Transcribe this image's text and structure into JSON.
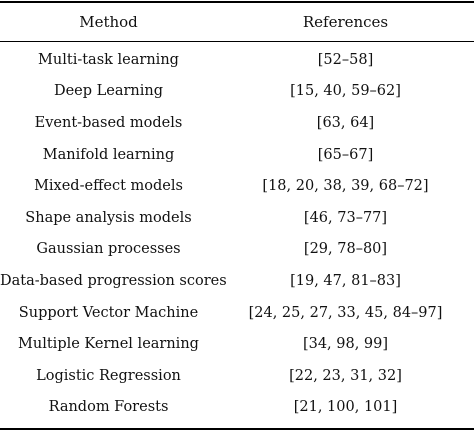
{
  "header": {
    "method": "Method",
    "references": "References"
  },
  "rows": [
    {
      "method": "Multi-task learning",
      "references": "[52–58]"
    },
    {
      "method": "Deep Learning",
      "references": "[15, 40, 59–62]"
    },
    {
      "method": "Event-based models",
      "references": "[63, 64]"
    },
    {
      "method": "Manifold learning",
      "references": "[65–67]"
    },
    {
      "method": "Mixed-effect models",
      "references": "[18, 20, 38, 39, 68–72]"
    },
    {
      "method": "Shape analysis models",
      "references": "[46, 73–77]"
    },
    {
      "method": "Gaussian processes",
      "references": "[29, 78–80]"
    },
    {
      "method": "Data-based progression scores",
      "references": "[19, 47, 81–83]"
    },
    {
      "method": "Support Vector Machine",
      "references": "[24, 25, 27, 33, 45, 84–97]"
    },
    {
      "method": "Multiple Kernel learning",
      "references": "[34, 98, 99]"
    },
    {
      "method": "Logistic Regression",
      "references": "[22, 23, 31, 32]"
    },
    {
      "method": "Random Forests",
      "references": "[21, 100, 101]"
    }
  ]
}
